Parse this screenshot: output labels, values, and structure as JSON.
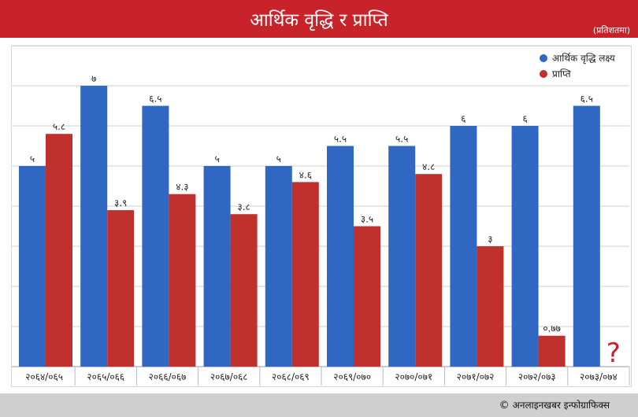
{
  "title": "आर्थिक वृद्धि र प्राप्ति",
  "unit": "(प्रतिशतमा)",
  "credit": "अनलाइनखबर इन्फोग्राफिक्स",
  "credit_symbol": "©",
  "colors": {
    "target": "#2f67c2",
    "achieved": "#c0302d",
    "title_bg": "#c8232a",
    "missing": "#c8232a"
  },
  "missing_marker": "?",
  "chart_data": {
    "type": "bar",
    "categories": [
      "२०६४/०६५",
      "२०६५/०६६",
      "२०६६/०६७",
      "२०६७/०६८",
      "२०६८/०६९",
      "२०६९/०७०",
      "२०७०/०७१",
      "२०७१/०७२",
      "२०७२/०७३",
      "२०७३/०७४"
    ],
    "series": [
      {
        "name": "आर्थिक वृद्धि लक्ष्य",
        "values": [
          5,
          7,
          6.5,
          5,
          5,
          5.5,
          5.5,
          6,
          6,
          6.5
        ],
        "labels": [
          "५",
          "७",
          "६.५",
          "५",
          "५",
          "५.५",
          "५.५",
          "६",
          "६",
          "६.५"
        ]
      },
      {
        "name": "प्राप्ति",
        "values": [
          5.8,
          3.9,
          4.3,
          3.8,
          4.6,
          3.5,
          4.8,
          3,
          0.77,
          null
        ],
        "labels": [
          "५.८",
          "३.९",
          "४.३",
          "३.८",
          "४.६",
          "३.५",
          "४.८",
          "३",
          "०.७७",
          ""
        ]
      }
    ],
    "ylim": [
      0,
      8
    ],
    "grid": true,
    "legend": "top-right"
  }
}
